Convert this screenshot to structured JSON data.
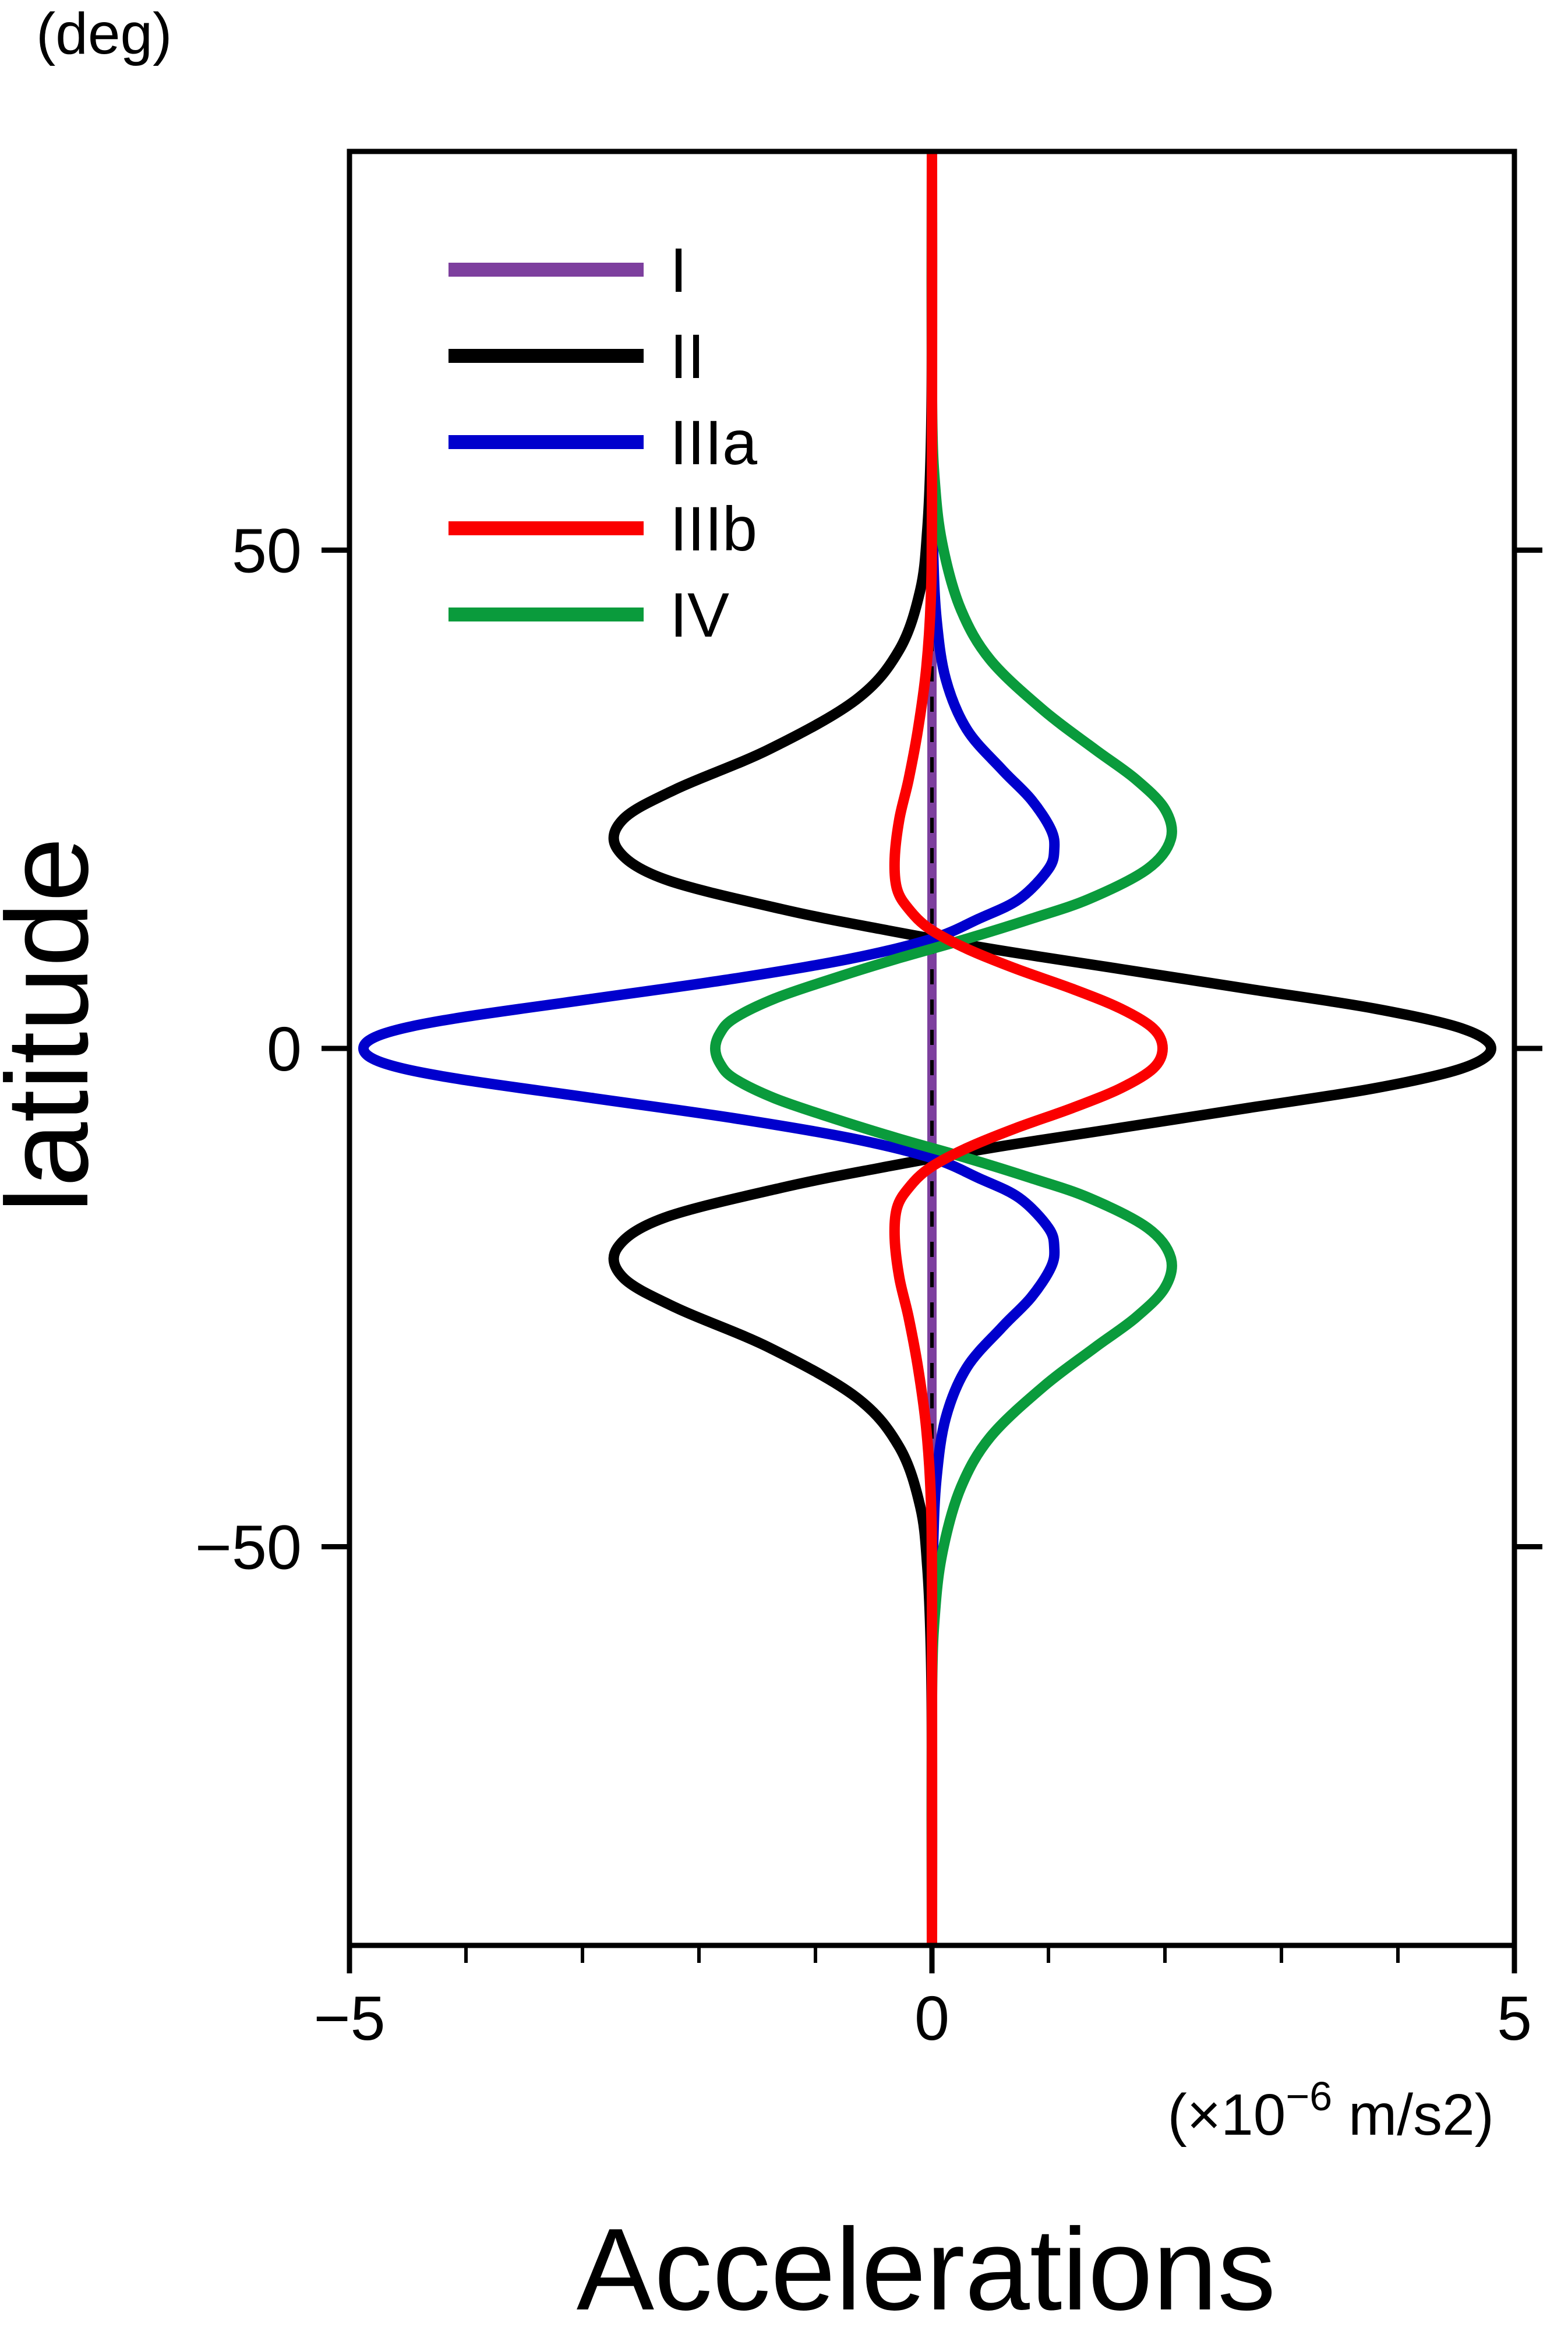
{
  "labels": {
    "y_axis_unit": "(deg)",
    "y_axis_title": "latitude",
    "x_axis_unit_prefix": "(×10",
    "x_axis_unit_exponent": "−6",
    "x_axis_unit_suffix": " m/s2)",
    "x_axis_title": "Accelerations"
  },
  "chart_data": {
    "type": "line",
    "title": "",
    "xlabel": "Accelerations (×10^−6 m/s2)",
    "ylabel": "latitude (deg)",
    "orientation": "acceleration on x-axis vs latitude on y-axis",
    "xlim": [
      -5,
      5
    ],
    "ylim": [
      -90,
      90
    ],
    "x_ticks_major": [
      -5,
      0,
      5
    ],
    "x_ticks_minor": [
      -4,
      -3,
      -2,
      -1,
      1,
      2,
      3,
      4
    ],
    "y_ticks_major": [
      -50,
      0,
      50
    ],
    "grid": false,
    "legend_position": "top-left inside plot",
    "zero_line": {
      "x": 0,
      "style": "dashed",
      "color": "#000000"
    },
    "frame_color": "#000000",
    "background_color": "#ffffff",
    "draw_order": [
      "I",
      "II",
      "IIIa",
      "IV",
      "IIIb"
    ],
    "series": [
      {
        "name": "I",
        "color": "#7d3f9e",
        "points": [
          [
            -90,
            0
          ],
          [
            -50,
            0
          ],
          [
            -20,
            0
          ],
          [
            0,
            0
          ],
          [
            20,
            0
          ],
          [
            50,
            0
          ],
          [
            90,
            0
          ]
        ]
      },
      {
        "name": "II",
        "color": "#000000",
        "points": [
          [
            -90,
            0
          ],
          [
            -70,
            0
          ],
          [
            -60,
            -0.01
          ],
          [
            -52,
            -0.04
          ],
          [
            -46,
            -0.1
          ],
          [
            -40,
            -0.28
          ],
          [
            -35,
            -0.65
          ],
          [
            -30,
            -1.4
          ],
          [
            -26,
            -2.2
          ],
          [
            -23,
            -2.65
          ],
          [
            -20,
            -2.7
          ],
          [
            -17,
            -2.3
          ],
          [
            -14,
            -1.3
          ],
          [
            -12,
            -0.45
          ],
          [
            -10,
            0.5
          ],
          [
            -8,
            1.6
          ],
          [
            -6,
            2.7
          ],
          [
            -4,
            3.8
          ],
          [
            -2,
            4.55
          ],
          [
            0,
            4.8
          ],
          [
            2,
            4.55
          ],
          [
            4,
            3.8
          ],
          [
            6,
            2.7
          ],
          [
            8,
            1.6
          ],
          [
            10,
            0.5
          ],
          [
            12,
            -0.45
          ],
          [
            14,
            -1.3
          ],
          [
            17,
            -2.3
          ],
          [
            20,
            -2.7
          ],
          [
            23,
            -2.65
          ],
          [
            26,
            -2.2
          ],
          [
            30,
            -1.4
          ],
          [
            35,
            -0.65
          ],
          [
            40,
            -0.28
          ],
          [
            46,
            -0.1
          ],
          [
            52,
            -0.04
          ],
          [
            60,
            -0.01
          ],
          [
            70,
            0
          ],
          [
            90,
            0
          ]
        ]
      },
      {
        "name": "IIIa",
        "color": "#0000cd",
        "points": [
          [
            -90,
            0
          ],
          [
            -60,
            0
          ],
          [
            -50,
            0.01
          ],
          [
            -43,
            0.04
          ],
          [
            -37,
            0.12
          ],
          [
            -32,
            0.3
          ],
          [
            -28,
            0.6
          ],
          [
            -25,
            0.85
          ],
          [
            -22,
            1.02
          ],
          [
            -20,
            1.05
          ],
          [
            -18,
            1.0
          ],
          [
            -15,
            0.75
          ],
          [
            -13,
            0.4
          ],
          [
            -11,
            0
          ],
          [
            -9,
            -0.7
          ],
          [
            -7,
            -1.7
          ],
          [
            -5,
            -2.9
          ],
          [
            -3,
            -4.1
          ],
          [
            -1.5,
            -4.7
          ],
          [
            0,
            -4.88
          ],
          [
            1.5,
            -4.7
          ],
          [
            3,
            -4.1
          ],
          [
            5,
            -2.9
          ],
          [
            7,
            -1.7
          ],
          [
            9,
            -0.7
          ],
          [
            11,
            0
          ],
          [
            13,
            0.4
          ],
          [
            15,
            0.75
          ],
          [
            18,
            1.0
          ],
          [
            20,
            1.05
          ],
          [
            22,
            1.02
          ],
          [
            25,
            0.85
          ],
          [
            28,
            0.6
          ],
          [
            32,
            0.3
          ],
          [
            37,
            0.12
          ],
          [
            43,
            0.04
          ],
          [
            50,
            0.01
          ],
          [
            60,
            0
          ],
          [
            90,
            0
          ]
        ]
      },
      {
        "name": "IIIb",
        "color": "#fb0000",
        "points": [
          [
            -90,
            0
          ],
          [
            -55,
            0
          ],
          [
            -45,
            -0.01
          ],
          [
            -38,
            -0.05
          ],
          [
            -32,
            -0.12
          ],
          [
            -27,
            -0.2
          ],
          [
            -23,
            -0.28
          ],
          [
            -19,
            -0.32
          ],
          [
            -16,
            -0.3
          ],
          [
            -14,
            -0.2
          ],
          [
            -12,
            -0.02
          ],
          [
            -10,
            0.3
          ],
          [
            -8,
            0.72
          ],
          [
            -6,
            1.2
          ],
          [
            -4,
            1.62
          ],
          [
            -2,
            1.9
          ],
          [
            0,
            1.98
          ],
          [
            2,
            1.9
          ],
          [
            4,
            1.62
          ],
          [
            6,
            1.2
          ],
          [
            8,
            0.72
          ],
          [
            10,
            0.3
          ],
          [
            12,
            -0.02
          ],
          [
            14,
            -0.2
          ],
          [
            16,
            -0.3
          ],
          [
            19,
            -0.32
          ],
          [
            23,
            -0.28
          ],
          [
            27,
            -0.2
          ],
          [
            32,
            -0.12
          ],
          [
            38,
            -0.05
          ],
          [
            45,
            -0.01
          ],
          [
            55,
            0
          ],
          [
            90,
            0
          ]
        ]
      },
      {
        "name": "IV",
        "color": "#0a9b3c",
        "points": [
          [
            -90,
            0
          ],
          [
            -65,
            0
          ],
          [
            -56,
            0.03
          ],
          [
            -50,
            0.1
          ],
          [
            -44,
            0.25
          ],
          [
            -39,
            0.5
          ],
          [
            -34,
            0.95
          ],
          [
            -30,
            1.4
          ],
          [
            -27,
            1.75
          ],
          [
            -24,
            2.0
          ],
          [
            -21,
            2.05
          ],
          [
            -18,
            1.85
          ],
          [
            -15,
            1.35
          ],
          [
            -13,
            0.85
          ],
          [
            -11,
            0.3
          ],
          [
            -9,
            -0.3
          ],
          [
            -7,
            -0.85
          ],
          [
            -5,
            -1.35
          ],
          [
            -3,
            -1.7
          ],
          [
            -1.5,
            -1.82
          ],
          [
            0,
            -1.86
          ],
          [
            1.5,
            -1.82
          ],
          [
            3,
            -1.7
          ],
          [
            5,
            -1.35
          ],
          [
            7,
            -0.85
          ],
          [
            9,
            -0.3
          ],
          [
            11,
            0.3
          ],
          [
            13,
            0.85
          ],
          [
            15,
            1.35
          ],
          [
            18,
            1.85
          ],
          [
            21,
            2.05
          ],
          [
            24,
            2.0
          ],
          [
            27,
            1.75
          ],
          [
            30,
            1.4
          ],
          [
            34,
            0.95
          ],
          [
            39,
            0.5
          ],
          [
            44,
            0.25
          ],
          [
            50,
            0.1
          ],
          [
            56,
            0.03
          ],
          [
            65,
            0
          ],
          [
            90,
            0
          ]
        ]
      }
    ]
  }
}
